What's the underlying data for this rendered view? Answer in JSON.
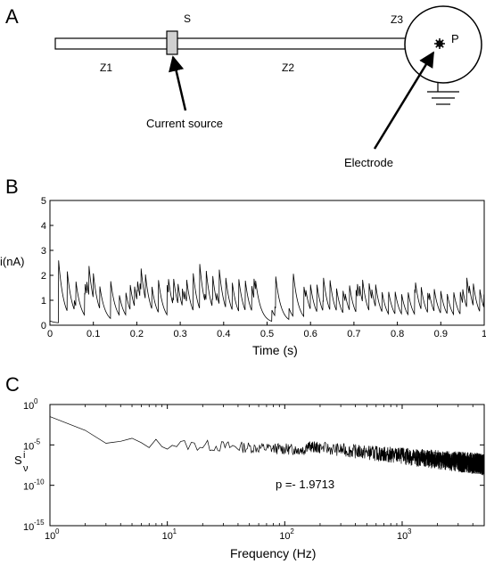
{
  "panel_a": {
    "letter": "A",
    "label_s": "S",
    "label_z1": "Z1",
    "label_z2": "Z2",
    "label_z3": "Z3",
    "label_p": "P",
    "current_source": "Current source",
    "electrode": "Electrode"
  },
  "panel_b": {
    "letter": "B",
    "ylabel": "i(nA)",
    "xlabel": "Time (s)",
    "x_ticks": [
      "0",
      "0.1",
      "0.2",
      "0.3",
      "0.4",
      "0.5",
      "0.6",
      "0.7",
      "0.8",
      "0.9",
      "1"
    ],
    "y_ticks": [
      "0",
      "1",
      "2",
      "3",
      "4",
      "5"
    ]
  },
  "panel_c": {
    "letter": "C",
    "xlabel": "Frequency (Hz)",
    "annotation": "p =- 1.9713",
    "x_tick_exponents": [
      "0",
      "1",
      "2",
      "3"
    ],
    "y_tick_exponents": [
      "0",
      "-5",
      "-10",
      "-15"
    ],
    "tick_base": "10"
  },
  "chart_data": [
    {
      "type": "line",
      "panel": "B",
      "xlabel": "Time (s)",
      "ylabel": "i(nA)",
      "xlim": [
        0,
        1
      ],
      "ylim": [
        0,
        5
      ],
      "grid": false,
      "spike_times": [
        0.02,
        0.04,
        0.06,
        0.08,
        0.09,
        0.1,
        0.115,
        0.14,
        0.16,
        0.175,
        0.185,
        0.195,
        0.21,
        0.22,
        0.235,
        0.25,
        0.27,
        0.285,
        0.295,
        0.305,
        0.315,
        0.33,
        0.345,
        0.36,
        0.375,
        0.39,
        0.405,
        0.42,
        0.435,
        0.45,
        0.465,
        0.47,
        0.52,
        0.56,
        0.585,
        0.6,
        0.615,
        0.63,
        0.645,
        0.66,
        0.675,
        0.69,
        0.705,
        0.72,
        0.735,
        0.75,
        0.765,
        0.78,
        0.795,
        0.81,
        0.825,
        0.84,
        0.855,
        0.87,
        0.885,
        0.9,
        0.915,
        0.93,
        0.945,
        0.96,
        0.975,
        0.99
      ],
      "spike_amps": [
        2.5,
        1.6,
        1.0,
        0.9,
        1.2,
        1.0,
        0.9,
        1.5,
        0.8,
        0.9,
        1.0,
        0.8,
        0.9,
        1.0,
        0.9,
        0.9,
        1.2,
        0.9,
        0.8,
        0.7,
        0.9,
        1.5,
        1.8,
        1.2,
        1.0,
        1.4,
        1.2,
        1.1,
        1.3,
        1.2,
        1.0,
        0.8,
        1.3,
        1.3,
        1.2,
        1.0,
        1.1,
        1.0,
        1.2,
        0.9,
        0.9,
        1.0,
        0.9,
        0.9,
        1.1,
        0.9,
        0.8,
        0.9,
        0.9,
        0.8,
        0.9,
        1.0,
        0.9,
        0.8,
        0.9,
        0.9,
        0.8,
        0.9,
        0.9,
        1.2,
        0.9,
        0.9
      ],
      "decay_tau": 0.012
    },
    {
      "type": "line",
      "panel": "C",
      "xlabel": "Frequency (Hz)",
      "x_scale": "log",
      "y_scale": "log",
      "xlim": [
        1,
        5000
      ],
      "ylim": [
        1e-15,
        1
      ],
      "slope": -1.9713,
      "intercept_at_1hz": 0.02,
      "grid": false
    }
  ]
}
